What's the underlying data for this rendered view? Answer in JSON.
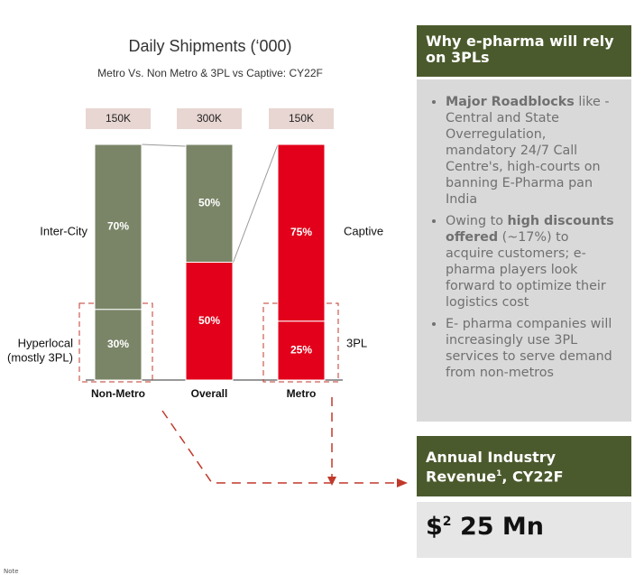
{
  "chart_data": {
    "type": "stacked_bar",
    "title": "Daily Shipments (‘000)",
    "subtitle": "Metro Vs. Non Metro & 3PL vs Captive: CY22F",
    "categories": [
      "Non-Metro",
      "Overall",
      "Metro"
    ],
    "totals": [
      {
        "value": 150,
        "label": "150K"
      },
      {
        "value": 300,
        "label": "300K"
      },
      {
        "value": 150,
        "label": "150K"
      }
    ],
    "series": [
      {
        "values": [
          30,
          50,
          25
        ],
        "value_labels": [
          "30%",
          "50%",
          "25%"
        ],
        "colors": [
          "#7a8567",
          "#e2001a",
          "#e2001a"
        ]
      },
      {
        "values": [
          70,
          50,
          75
        ],
        "value_labels": [
          "70%",
          "50%",
          "75%"
        ],
        "colors": [
          "#7a8567",
          "#7a8567",
          "#e2001a"
        ]
      }
    ],
    "ylim": [
      0,
      100
    ],
    "annotations": {
      "left_top": "Inter-City",
      "left_bottom": [
        "Hyperlocal",
        "(mostly 3PL)"
      ],
      "right_top": "Captive",
      "right_bottom": "3PL"
    }
  },
  "panel": {
    "title": "Why e-pharma will rely on 3PLs",
    "bullets": [
      [
        {
          "text": "Major Roadblocks",
          "bold": true
        },
        {
          "text": " like - Central and State Overregulation, mandatory 24/7 Call Centre's, high-courts on banning E-Pharma pan India",
          "bold": false
        }
      ],
      [
        {
          "text": "Owing to ",
          "bold": false
        },
        {
          "text": "high discounts offered",
          "bold": true
        },
        {
          "text": " (~17%) to acquire customers; e-pharma players look forward to optimize their logistics cost",
          "bold": false
        }
      ],
      [
        {
          "text": "E- pharma companies will increasingly use 3PL services to serve demand from non-metros",
          "bold": false
        }
      ]
    ]
  },
  "revenue": {
    "title": "Annual Industry Revenue",
    "title_sup": "1",
    "title_rest": ", CY22F",
    "currency": "$",
    "sup": "2",
    "amount": " 25 Mn"
  },
  "note": "Note"
}
